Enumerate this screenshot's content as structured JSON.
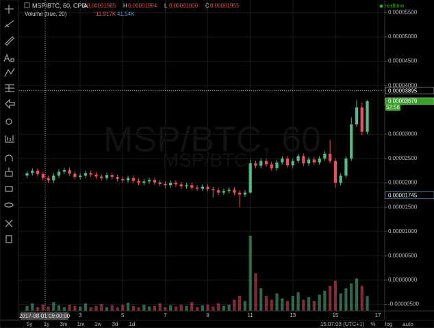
{
  "header": {
    "symbol": "MSP/BTC, 60, CPIA",
    "ohlc": [
      {
        "key": "O",
        "value": "0.00001985"
      },
      {
        "key": "H",
        "value": "0.00001994"
      },
      {
        "key": "L",
        "value": "0.00001800"
      },
      {
        "key": "C",
        "value": "0.00001955"
      }
    ],
    "volume_label": "Volume (true, 20)",
    "volume_values": [
      "11.917K",
      "41.54K"
    ],
    "status": "realtime"
  },
  "watermark": {
    "main": "MSP/BTC, 60",
    "sub": "MSP/BTC"
  },
  "cursor_time": "2017-08-01 09:00:00",
  "countdown": "52:56",
  "bottom_bar": {
    "ranges": [
      "5y",
      "1y",
      "3m",
      "1m",
      "1w",
      "3d",
      "1d"
    ],
    "clock": "15:07:03 (UTC+1)",
    "options": [
      "%",
      "log",
      "auto"
    ]
  },
  "chart_data": {
    "type": "candlestick",
    "up_color": "#53b987",
    "down_color": "#eb4d5c",
    "x": [
      0.5,
      0.75,
      1,
      1.25,
      1.5,
      1.75,
      2,
      2.25,
      2.5,
      2.75,
      3,
      3.25,
      3.5,
      3.75,
      4,
      4.25,
      4.5,
      4.75,
      5,
      5.25,
      5.5,
      5.75,
      6,
      6.25,
      6.5,
      6.75,
      7,
      7.25,
      7.5,
      7.75,
      8,
      8.25,
      8.5,
      8.75,
      9,
      9.25,
      9.5,
      9.75,
      10,
      10.25,
      10.5,
      10.75,
      11,
      11.25,
      11.5,
      11.75,
      12,
      12.25,
      12.5,
      12.75,
      13,
      13.25,
      13.5,
      13.75,
      14,
      14.25,
      14.5,
      14.75,
      15,
      15.25,
      15.5,
      15.75,
      16,
      16.25,
      16.5
    ],
    "open": [
      2.15e-05,
      2.2e-05,
      2.25e-05,
      2.18e-05,
      2.1e-05,
      2.05e-05,
      2.15e-05,
      2.23e-05,
      2.26e-05,
      2.19e-05,
      2.12e-05,
      2.15e-05,
      2.2e-05,
      2.17e-05,
      2.13e-05,
      2.1e-05,
      2.16e-05,
      2.12e-05,
      2.08e-05,
      2.05e-05,
      2.1e-05,
      2.04e-05,
      2e-05,
      2.03e-05,
      2.06e-05,
      2.01e-05,
      1.98e-05,
      1.95e-05,
      2e-05,
      1.97e-05,
      1.93e-05,
      1.95e-05,
      1.9e-05,
      1.88e-05,
      1.92e-05,
      1.87e-05,
      1.85e-05,
      1.8e-05,
      1.83e-05,
      1.86e-05,
      1.8e-05,
      1.76e-05,
      1.8e-05,
      2.4e-05,
      2.35e-05,
      2.45e-05,
      2.38e-05,
      2.3e-05,
      2.42e-05,
      2.5e-05,
      2.36e-05,
      2.45e-05,
      2.55e-05,
      2.4e-05,
      2.48e-05,
      2.42e-05,
      2.5e-05,
      2.6e-05,
      2.45e-05,
      2e-05,
      2.15e-05,
      2.5e-05,
      3.2e-05,
      3.55e-05,
      3.05e-05
    ],
    "high": [
      2.25e-05,
      2.3e-05,
      2.3e-05,
      2.23e-05,
      2.15e-05,
      2.2e-05,
      2.28e-05,
      2.31e-05,
      2.31e-05,
      2.24e-05,
      2.2e-05,
      2.25e-05,
      2.25e-05,
      2.22e-05,
      2.18e-05,
      2.21e-05,
      2.21e-05,
      2.17e-05,
      2.13e-05,
      2.15e-05,
      2.15e-05,
      2.09e-05,
      2.08e-05,
      2.11e-05,
      2.11e-05,
      2.06e-05,
      2.03e-05,
      2.05e-05,
      2.05e-05,
      2.02e-05,
      2e-05,
      2e-05,
      1.95e-05,
      1.97e-05,
      1.97e-05,
      1.92e-05,
      1.9e-05,
      1.88e-05,
      1.91e-05,
      1.91e-05,
      1.85e-05,
      1.85e-05,
      2.48e-05,
      2.45e-05,
      2.5e-05,
      2.5e-05,
      2.43e-05,
      2.47e-05,
      2.55e-05,
      2.55e-05,
      2.5e-05,
      2.6e-05,
      2.6e-05,
      2.53e-05,
      2.53e-05,
      2.55e-05,
      2.65e-05,
      2.88e-05,
      2.5e-05,
      2.2e-05,
      2.55e-05,
      3.35e-05,
      3.7e-05,
      3.65e-05,
      3.7e-05
    ],
    "low": [
      2.1e-05,
      2.15e-05,
      2.13e-05,
      2.05e-05,
      2e-05,
      2e-05,
      2.1e-05,
      2.18e-05,
      2.14e-05,
      2.07e-05,
      2.07e-05,
      2.1e-05,
      2.12e-05,
      2.08e-05,
      2.05e-05,
      2.05e-05,
      2.07e-05,
      2.03e-05,
      2e-05,
      2e-05,
      1.99e-05,
      1.95e-05,
      1.95e-05,
      1.98e-05,
      1.96e-05,
      1.93e-05,
      1.9e-05,
      1.9e-05,
      1.92e-05,
      1.88e-05,
      1.88e-05,
      1.85e-05,
      1.83e-05,
      1.83e-05,
      1.82e-05,
      1.7e-05,
      1.75e-05,
      1.75e-05,
      1.78e-05,
      1.75e-05,
      1.5e-05,
      1.71e-05,
      1.78e-05,
      2.3e-05,
      2.3e-05,
      2.33e-05,
      2.25e-05,
      2.25e-05,
      2.37e-05,
      2.31e-05,
      2.31e-05,
      2.4e-05,
      2.35e-05,
      2.35e-05,
      2.37e-05,
      2.37e-05,
      2.45e-05,
      2.4e-05,
      1.9e-05,
      1.95e-05,
      2.1e-05,
      2.45e-05,
      3.15e-05,
      2.98e-05,
      3e-05
    ],
    "close": [
      2.2e-05,
      2.25e-05,
      2.18e-05,
      2.1e-05,
      2.05e-05,
      2.15e-05,
      2.23e-05,
      2.26e-05,
      2.19e-05,
      2.12e-05,
      2.15e-05,
      2.2e-05,
      2.17e-05,
      2.13e-05,
      2.1e-05,
      2.16e-05,
      2.12e-05,
      2.08e-05,
      2.05e-05,
      2.1e-05,
      2.04e-05,
      2e-05,
      2.03e-05,
      2.06e-05,
      2.01e-05,
      1.98e-05,
      1.95e-05,
      2e-05,
      1.97e-05,
      1.93e-05,
      1.95e-05,
      1.9e-05,
      1.88e-05,
      1.92e-05,
      1.87e-05,
      1.85e-05,
      1.8e-05,
      1.83e-05,
      1.86e-05,
      1.8e-05,
      1.76e-05,
      1.8e-05,
      2.4e-05,
      2.35e-05,
      2.45e-05,
      2.38e-05,
      2.3e-05,
      2.42e-05,
      2.5e-05,
      2.36e-05,
      2.45e-05,
      2.55e-05,
      2.4e-05,
      2.48e-05,
      2.42e-05,
      2.5e-05,
      2.6e-05,
      2.45e-05,
      2e-05,
      2.15e-05,
      2.5e-05,
      3.2e-05,
      3.55e-05,
      3.05e-05,
      3.679e-05
    ],
    "volume": [
      4000,
      6000,
      3000,
      5000,
      3500,
      7000,
      4500,
      3000,
      5000,
      4000,
      3500,
      6000,
      3000,
      4000,
      5500,
      3000,
      4500,
      3000,
      5000,
      6500,
      4000,
      3000,
      5000,
      3500,
      4000,
      6000,
      3000,
      4500,
      3500,
      5000,
      4000,
      7000,
      3000,
      4500,
      5000,
      3500,
      6000,
      4000,
      5000,
      9000,
      12000,
      8000,
      60000,
      30000,
      18000,
      12000,
      9000,
      14000,
      10000,
      8000,
      12000,
      15000,
      9000,
      11000,
      8000,
      13000,
      16000,
      20000,
      24000,
      14000,
      18000,
      22000,
      26000,
      20000,
      11917
    ],
    "xlim": [
      0.13,
      17.32
    ],
    "xticks": [
      3,
      5,
      7,
      9,
      11,
      13,
      15,
      17
    ],
    "ylim": [
      -6.32e-06,
      5.758e-05
    ],
    "yticks": [
      {
        "value": -5e-06,
        "label": "-0.00000500"
      },
      {
        "value": 0,
        "label": "0.00000000"
      },
      {
        "value": 5e-06,
        "label": "0.00000500"
      },
      {
        "value": 1e-05,
        "label": "0.00001000"
      },
      {
        "value": 1.5e-05,
        "label": "0.00001500"
      },
      {
        "value": 2e-05,
        "label": "0.00002000"
      },
      {
        "value": 2.5e-05,
        "label": "0.00002500"
      },
      {
        "value": 3e-05,
        "label": "0.00003000"
      },
      {
        "value": 4e-05,
        "label": "0.00004000"
      },
      {
        "value": 4.5e-05,
        "label": "0.00004500"
      },
      {
        "value": 5e-05,
        "label": "0.00005000"
      },
      {
        "value": 5.5e-05,
        "label": "0.00005500"
      }
    ],
    "grid": true,
    "price_markers": [
      {
        "value": 3.895e-05,
        "color": "#000000"
      },
      {
        "value": 3.679e-05,
        "color": "#3a9f2a"
      },
      {
        "value": 1.745e-05,
        "color": "#000000"
      }
    ]
  }
}
